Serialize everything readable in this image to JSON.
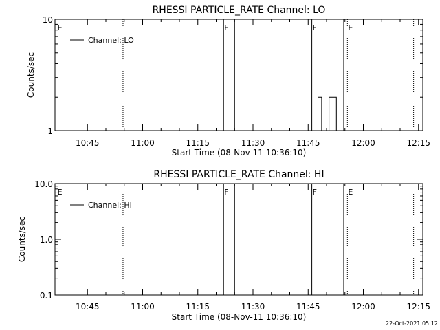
{
  "footer": {
    "timestamp": "22-Oct-2021 05:12"
  },
  "chart_data": [
    {
      "type": "line",
      "title": "RHESSI PARTICLE_RATE Channel: LO",
      "xlabel": "Start Time (08-Nov-11 10:36:10)",
      "ylabel": "Counts/sec",
      "yscale": "log",
      "ylim": [
        1,
        10
      ],
      "xlim": [
        "10:36:10",
        "12:16:10"
      ],
      "x_ticks": [
        "10:45",
        "11:00",
        "11:15",
        "11:30",
        "11:45",
        "12:00",
        "12:15"
      ],
      "y_ticks": [
        "1",
        "10"
      ],
      "legend": {
        "label": "Channel: LO",
        "position": "top-left"
      },
      "grid": false,
      "markers": [
        {
          "label": "E",
          "time": "10:36:40",
          "style": "none"
        },
        {
          "label": "",
          "time": "10:54:40",
          "style": "dotted"
        },
        {
          "label": "F",
          "time": "11:22:00",
          "style": "solid"
        },
        {
          "label": "",
          "time": "11:25:00",
          "style": "solid"
        },
        {
          "label": "F",
          "time": "11:46:00",
          "style": "solid"
        },
        {
          "label": "",
          "time": "11:54:40",
          "style": "solid"
        },
        {
          "label": "E",
          "time": "11:55:40",
          "style": "dotted"
        },
        {
          "label": "",
          "time": "12:13:40",
          "style": "dotted"
        }
      ],
      "series": [
        {
          "name": "Channel: LO",
          "segments": [
            {
              "x": [
                "11:47:40",
                "11:47:40",
                "11:48:40",
                "11:48:40",
                "11:49:40"
              ],
              "y": [
                1,
                2,
                2,
                1,
                1
              ]
            },
            {
              "x": [
                "11:50:40",
                "11:50:40",
                "11:51:40",
                "11:51:40",
                "11:52:40",
                "11:52:40"
              ],
              "y": [
                1,
                2,
                2,
                2,
                2,
                1
              ]
            }
          ]
        }
      ]
    },
    {
      "type": "line",
      "title": "RHESSI PARTICLE_RATE Channel: HI",
      "xlabel": "Start Time (08-Nov-11 10:36:10)",
      "ylabel": "Counts/sec",
      "yscale": "log",
      "ylim": [
        0.1,
        10
      ],
      "xlim": [
        "10:36:10",
        "12:16:10"
      ],
      "x_ticks": [
        "10:45",
        "11:00",
        "11:15",
        "11:30",
        "11:45",
        "12:00",
        "12:15"
      ],
      "y_ticks": [
        "0.1",
        "1.0",
        "10.0"
      ],
      "legend": {
        "label": "Channel: HI",
        "position": "top-left"
      },
      "grid": false,
      "markers": [
        {
          "label": "E",
          "time": "10:36:40",
          "style": "none"
        },
        {
          "label": "",
          "time": "10:54:40",
          "style": "dotted"
        },
        {
          "label": "F",
          "time": "11:22:00",
          "style": "solid"
        },
        {
          "label": "",
          "time": "11:25:00",
          "style": "solid"
        },
        {
          "label": "F",
          "time": "11:46:00",
          "style": "solid"
        },
        {
          "label": "",
          "time": "11:54:40",
          "style": "solid"
        },
        {
          "label": "E",
          "time": "11:55:40",
          "style": "dotted"
        },
        {
          "label": "",
          "time": "12:13:40",
          "style": "dotted"
        }
      ],
      "series": [
        {
          "name": "Channel: HI",
          "segments": []
        }
      ]
    }
  ]
}
